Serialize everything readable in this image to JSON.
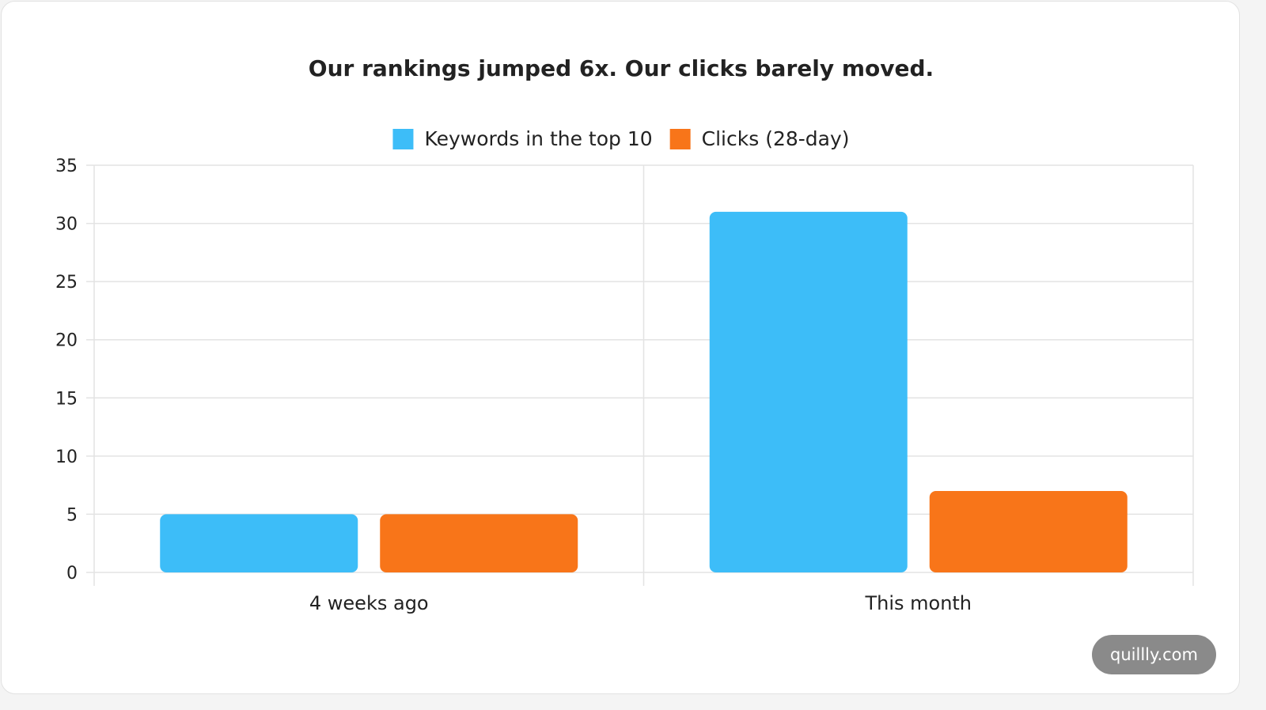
{
  "chart_data": {
    "type": "bar",
    "title": "Our rankings jumped 6x. Our clicks barely moved.",
    "categories": [
      "4 weeks ago",
      "This month"
    ],
    "series": [
      {
        "name": "Keywords in the top 10",
        "values": [
          5,
          31
        ],
        "color": "#3dbdf8"
      },
      {
        "name": "Clicks (28-day)",
        "values": [
          5,
          7
        ],
        "color": "#f87519"
      }
    ],
    "ylim": [
      0,
      35
    ],
    "yticks": [
      "0",
      "5",
      "10",
      "15",
      "20",
      "25",
      "30",
      "35"
    ],
    "grid": true,
    "legend_position": "top-center",
    "xlabel": "",
    "ylabel": ""
  },
  "watermark": "quillly.com"
}
